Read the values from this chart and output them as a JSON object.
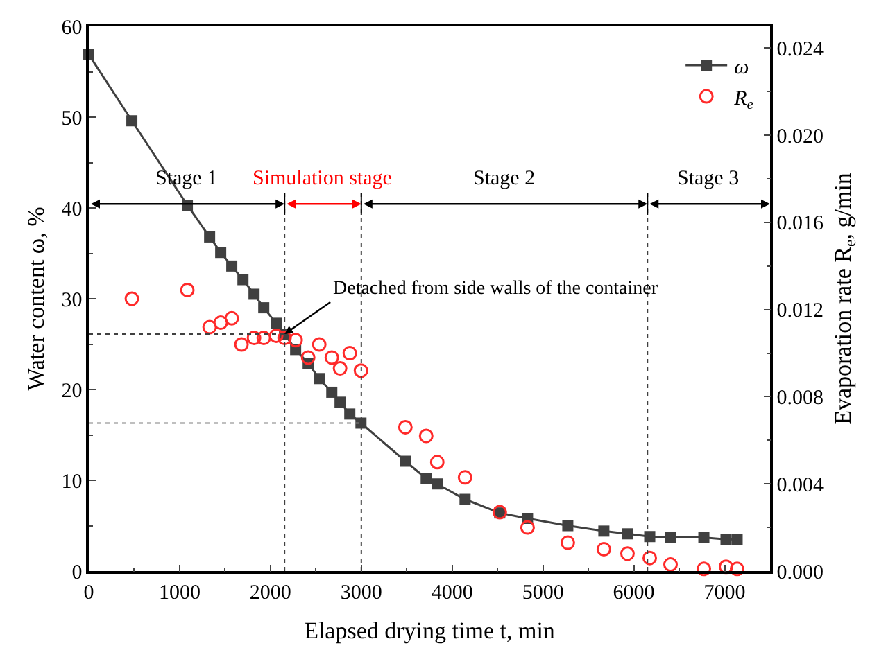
{
  "chart_data": {
    "type": "line",
    "xlabel": "Elapsed drying time t, min",
    "ylabel": "Water content ω, %",
    "y2label": "Evaporation rate R$_{e}$, g/min",
    "series": [
      {
        "name": "ω",
        "marker": "square",
        "color": "#404040",
        "x": [
          0,
          474,
          1085,
          1330,
          1452,
          1574,
          1697,
          1819,
          1926,
          2063,
          2155,
          2277,
          2415,
          2537,
          2675,
          2766,
          2873,
          2996,
          3485,
          3714,
          3836,
          4142,
          4524,
          4830,
          5273,
          5670,
          5930,
          6175,
          6404,
          6771,
          7015,
          7137
        ],
        "values": [
          56.9,
          49.6,
          40.3,
          36.8,
          35.1,
          33.6,
          32.1,
          30.5,
          29.0,
          27.3,
          26.1,
          24.4,
          22.9,
          21.2,
          19.7,
          18.6,
          17.3,
          16.3,
          12.1,
          10.2,
          9.6,
          7.9,
          6.4,
          5.8,
          5.0,
          4.4,
          4.1,
          3.8,
          3.7,
          3.7,
          3.5,
          3.5
        ]
      },
      {
        "name": "R$_{e}$",
        "type": "scatter",
        "marker": "circle",
        "axis": "y2",
        "color": "#ff2a2a",
        "x": [
          474,
          1085,
          1330,
          1452,
          1574,
          1681,
          1819,
          1926,
          2063,
          2155,
          2277,
          2415,
          2537,
          2675,
          2766,
          2873,
          2996,
          3485,
          3714,
          3836,
          4142,
          4524,
          4830,
          5273,
          5670,
          5930,
          6175,
          6404,
          6771,
          7015,
          7137
        ],
        "values": [
          0.0125,
          0.0129,
          0.0112,
          0.0114,
          0.0116,
          0.0104,
          0.0107,
          0.0107,
          0.0108,
          0.0107,
          0.0106,
          0.0098,
          0.0104,
          0.0098,
          0.0093,
          0.01,
          0.0092,
          0.0066,
          0.0062,
          0.005,
          0.0043,
          0.0027,
          0.002,
          0.0013,
          0.001,
          0.0008,
          0.0006,
          0.0003,
          0.0001,
          0.0002,
          0.0001
        ]
      }
    ],
    "xlim": [
      0,
      7500
    ],
    "xticks": [
      0,
      1000,
      2000,
      3000,
      4000,
      5000,
      6000,
      7000
    ],
    "ylim": [
      0,
      60
    ],
    "yticks": [
      0,
      10,
      20,
      30,
      40,
      50,
      60
    ],
    "y2lim": [
      0,
      0.025
    ],
    "y2ticks": [
      {
        "value": 0,
        "label": "0.000"
      },
      {
        "value": 0.004,
        "label": "0.004"
      },
      {
        "value": 0.008,
        "label": "0.008"
      },
      {
        "value": 0.012,
        "label": "0.012"
      },
      {
        "value": 0.016,
        "label": "0.016"
      },
      {
        "value": 0.02,
        "label": "0.020"
      },
      {
        "value": 0.024,
        "label": "0.024"
      }
    ],
    "ref_lines": [
      {
        "axis": "x",
        "value": 2155,
        "line_style": "dotted",
        "color": "#404040"
      },
      {
        "axis": "x",
        "value": 3000,
        "line_style": "dotted",
        "color": "#404040"
      },
      {
        "axis": "x",
        "value": 6150,
        "line_style": "dotted",
        "color": "#404040"
      },
      {
        "axis": "y",
        "value": 26.1,
        "line_style": "dotted",
        "color": "#404040"
      },
      {
        "axis": "y",
        "value": 16.3,
        "line_style": "dotted",
        "color": "#808080"
      }
    ],
    "annotations": [
      "Stage 1",
      "Simulation stage",
      "Stage 2",
      "Stage 3",
      {
        "text": "Detached from side walls of the container",
        "x": 2155,
        "y": 26.1
      }
    ],
    "grid": false,
    "legend": "top right"
  }
}
